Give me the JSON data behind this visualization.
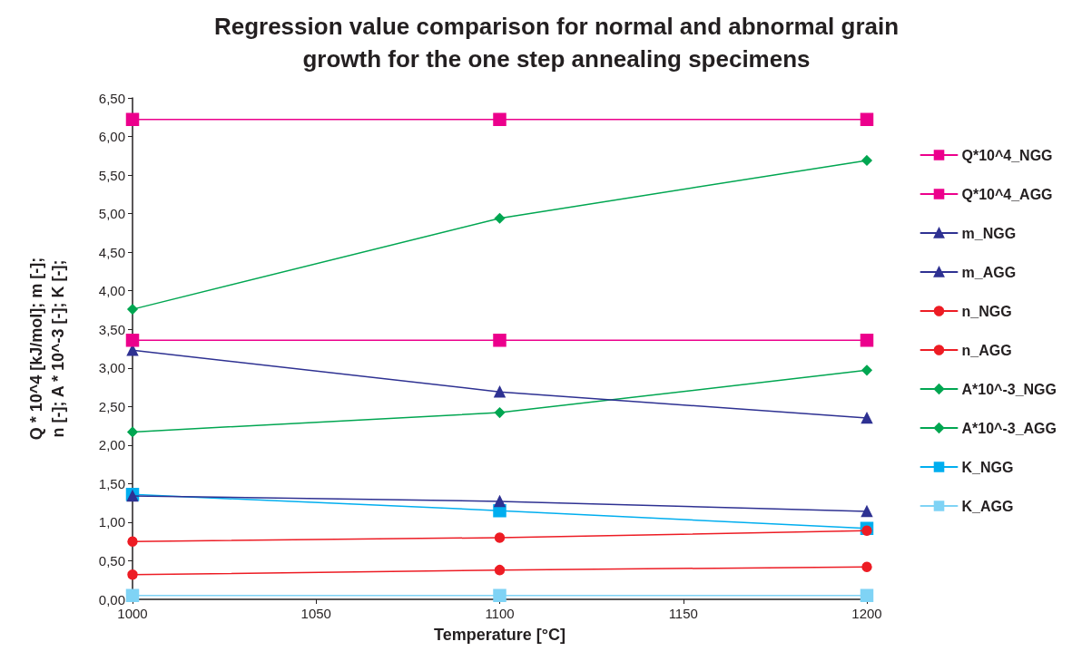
{
  "chart_data": {
    "type": "line",
    "title": "Regression value comparison for normal and abnormal grain\ngrowth for the one step annealing specimens",
    "xlabel": "Temperature [°C]",
    "ylabel": "Q * 10^4 [kJ/mol]; m [-];\nn [-]; A * 10^-3 [-]; K [-];",
    "x": [
      1000,
      1100,
      1200
    ],
    "xlim": [
      1000,
      1200
    ],
    "xticks": [
      1000,
      1050,
      1100,
      1150,
      1200
    ],
    "ylim": [
      0,
      6.5
    ],
    "yticks": [
      {
        "value": 0,
        "label": "0,00"
      },
      {
        "value": 0.5,
        "label": "0,50"
      },
      {
        "value": 1,
        "label": "1,00"
      },
      {
        "value": 1.5,
        "label": "1,50"
      },
      {
        "value": 2,
        "label": "2,00"
      },
      {
        "value": 2.5,
        "label": "2,50"
      },
      {
        "value": 3,
        "label": "3,00"
      },
      {
        "value": 3.5,
        "label": "3,50"
      },
      {
        "value": 4,
        "label": "4,00"
      },
      {
        "value": 4.5,
        "label": "4,50"
      },
      {
        "value": 5,
        "label": "5,00"
      },
      {
        "value": 5.5,
        "label": "5,50"
      },
      {
        "value": 6,
        "label": "6,00"
      },
      {
        "value": 6.5,
        "label": "6,50"
      }
    ],
    "grid": false,
    "legend": "right",
    "line_style": "solid",
    "series": [
      {
        "name": "Q*10^4_NGG",
        "color": "#ec008c",
        "marker": "square",
        "values": [
          6.22,
          6.22,
          6.22
        ]
      },
      {
        "name": "Q*10^4_AGG",
        "color": "#ec008c",
        "marker": "square",
        "values": [
          3.36,
          3.36,
          3.36
        ]
      },
      {
        "name": "m_NGG",
        "color": "#2e3192",
        "marker": "triangle",
        "values": [
          3.23,
          2.69,
          2.35
        ]
      },
      {
        "name": "m_AGG",
        "color": "#2e3192",
        "marker": "triangle",
        "values": [
          1.34,
          1.27,
          1.14
        ]
      },
      {
        "name": "n_NGG",
        "color": "#ed1c24",
        "marker": "circle",
        "values": [
          0.32,
          0.38,
          0.42
        ]
      },
      {
        "name": "n_AGG",
        "color": "#ed1c24",
        "marker": "circle",
        "values": [
          0.75,
          0.8,
          0.89
        ]
      },
      {
        "name": "A*10^-3_NGG",
        "color": "#00a651",
        "marker": "diamond",
        "values": [
          3.76,
          4.94,
          5.69
        ]
      },
      {
        "name": "A*10^-3_AGG",
        "color": "#00a651",
        "marker": "diamond",
        "values": [
          2.17,
          2.42,
          2.97
        ]
      },
      {
        "name": "K_NGG",
        "color": "#00aeef",
        "marker": "square",
        "values": [
          1.36,
          1.15,
          0.92
        ]
      },
      {
        "name": "K_AGG",
        "color": "#7fd3f5",
        "marker": "square",
        "values": [
          0.05,
          0.05,
          0.05
        ]
      }
    ]
  }
}
